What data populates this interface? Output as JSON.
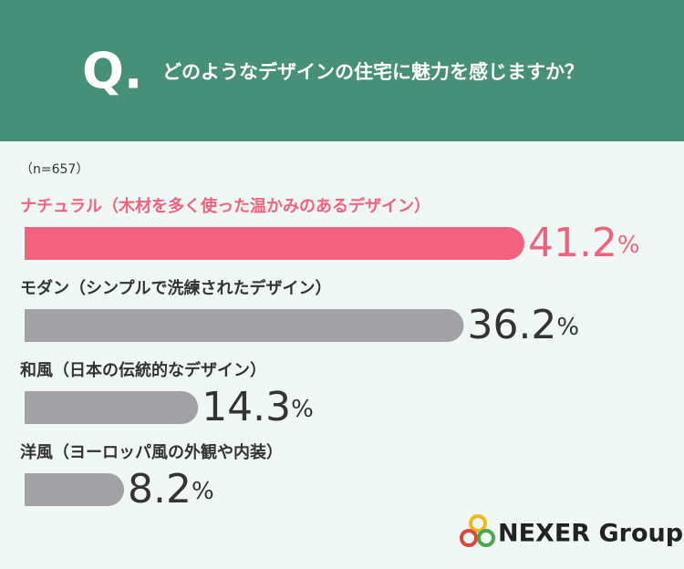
{
  "chart_data": {
    "type": "bar",
    "title_marker": "Q.",
    "title": "どのようなデザインの住宅に魅力を感じますか？",
    "subtitle": "（n=657）",
    "categories": [
      "ナチュラル（木材を多く使った温かみのあるデザイン）",
      "モダン（シンプルで洗練されたデザイン）",
      "和風（日本の伝統的なデザイン）",
      "洋風（ヨーロッパ風の外観や内装）"
    ],
    "values": [
      41.2,
      36.2,
      14.3,
      8.2
    ],
    "value_labels": [
      "41.2%",
      "36.2%",
      "14.3%",
      "8.2%"
    ],
    "colors": [
      "#f2627f",
      "#a2a2a6",
      "#a2a2a6",
      "#a2a2a6"
    ],
    "label_colors": [
      "#f2627f",
      "#333333",
      "#333333",
      "#333333"
    ]
  },
  "logo": "NEXER Group"
}
